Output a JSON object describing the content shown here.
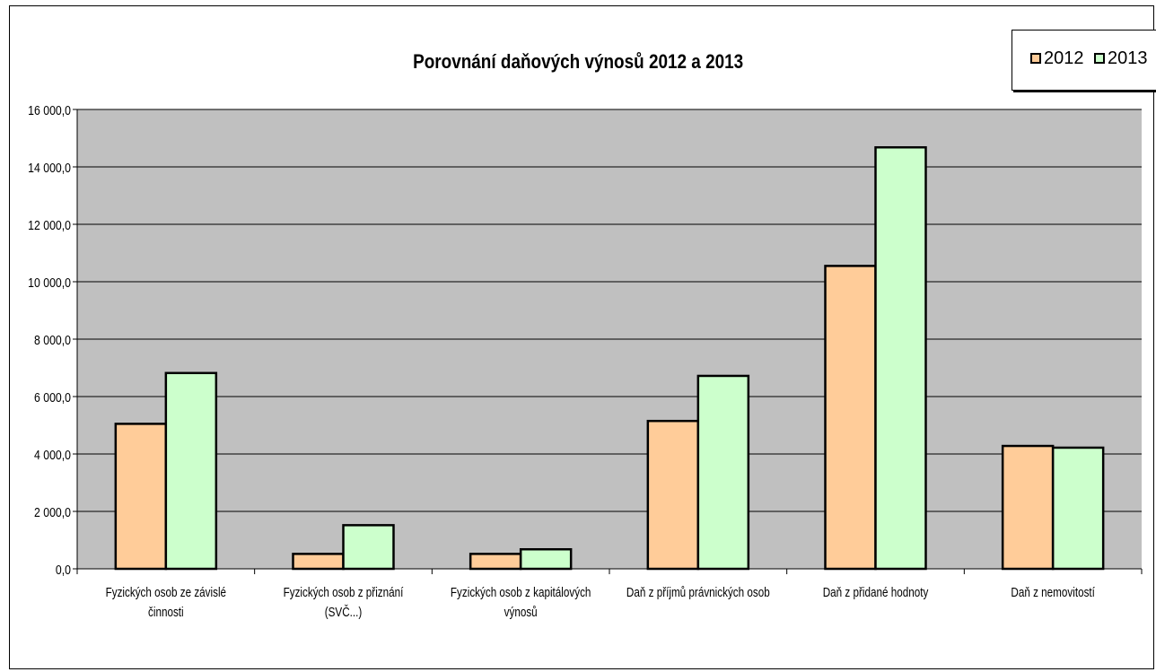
{
  "chart_data": {
    "type": "bar",
    "title": "Porovnání daňových výnosů 2012 a 2013",
    "xlabel": "",
    "ylabel": "",
    "ylim": [
      0,
      16000
    ],
    "yticks": [
      0,
      2000,
      4000,
      6000,
      8000,
      10000,
      12000,
      14000,
      16000
    ],
    "ytick_labels": [
      "0,0",
      "2 000,0",
      "4 000,0",
      "6 000,0",
      "8 000,0",
      "10 000,0",
      "12 000,0",
      "14 000,0",
      "16 000,0"
    ],
    "grid": true,
    "legend_position": "top-right",
    "categories": [
      [
        "Fyzických osob ze závislé",
        "činnosti"
      ],
      [
        "Fyzických osob z přiznání",
        "(SVČ...)"
      ],
      [
        "Fyzických osob z kapitálových",
        "výnosů"
      ],
      [
        "Daň z příjmů právnických osob"
      ],
      [
        "Daň z přidané hodnoty"
      ],
      [
        "Daň z nemovitostí"
      ]
    ],
    "series": [
      {
        "name": "2012",
        "color": "#ffcc99",
        "values": [
          5050,
          520,
          520,
          5150,
          10550,
          4280
        ]
      },
      {
        "name": "2013",
        "color": "#ccffcc",
        "values": [
          6820,
          1520,
          680,
          6720,
          14680,
          4220
        ]
      }
    ],
    "plot_bg": "#c0c0c0"
  }
}
